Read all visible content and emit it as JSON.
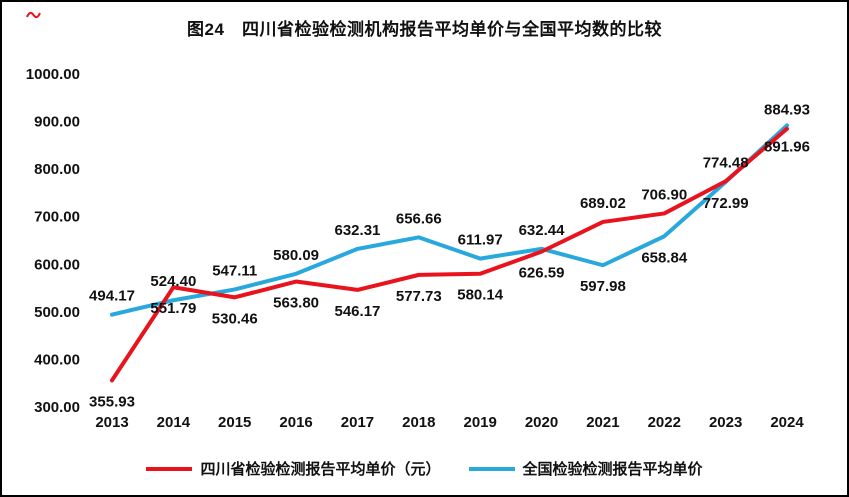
{
  "chart_data": {
    "type": "line",
    "title": "图24　四川省检验检测机构报告平均单价与全国平均数的比较",
    "xlabel": "",
    "ylabel": "",
    "categories": [
      "2013",
      "2014",
      "2015",
      "2016",
      "2017",
      "2018",
      "2019",
      "2020",
      "2021",
      "2022",
      "2023",
      "2024"
    ],
    "series": [
      {
        "name": "四川省检验检测报告平均单价（元）",
        "color": "#e8131c",
        "values": [
          355.93,
          551.79,
          530.46,
          563.8,
          546.17,
          577.73,
          580.14,
          626.59,
          689.02,
          706.9,
          774.48,
          884.93
        ],
        "label_sides": [
          "below",
          "below",
          "below",
          "below",
          "below",
          "below",
          "below",
          "below",
          "above",
          "above",
          "above",
          "above"
        ]
      },
      {
        "name": "全国检验检测报告平均单价",
        "color": "#29a8dd",
        "values": [
          494.17,
          524.4,
          547.11,
          580.09,
          632.31,
          656.66,
          611.97,
          632.44,
          597.98,
          658.84,
          772.99,
          891.96
        ],
        "label_sides": [
          "above",
          "above",
          "above",
          "above",
          "above",
          "above",
          "above",
          "above",
          "below",
          "below",
          "below",
          "below"
        ]
      }
    ],
    "ylim": [
      300,
      1000
    ],
    "ytick_step": 100,
    "ytick_labels": [
      "300.00",
      "400.00",
      "500.00",
      "600.00",
      "700.00",
      "800.00",
      "900.00",
      "1000.00"
    ],
    "grid": false,
    "legend_position": "bottom",
    "value_labels_shown": true,
    "label_color": "#111111"
  }
}
